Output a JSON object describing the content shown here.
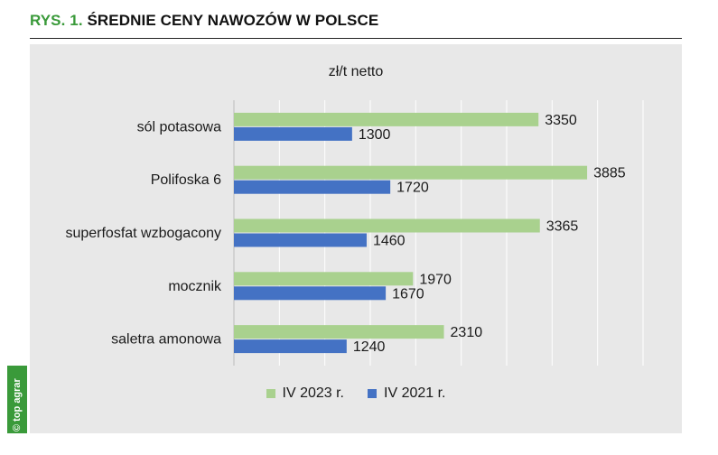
{
  "header": {
    "prefix": "RYS. 1.",
    "title": "ŚREDNIE CENY NAWOZÓW W POLSCE"
  },
  "watermark": "© top agrar",
  "colors": {
    "series_2023": "#a9d18e",
    "series_2021": "#4472c4",
    "title_accent": "#3a9a3a",
    "panel_bg": "#e8e8e8"
  },
  "chart_data": {
    "type": "bar",
    "orientation": "horizontal",
    "unit_label": "zł/t netto",
    "categories": [
      "sól potasowa",
      "Polifoska 6",
      "superfosfat wzbogacony",
      "mocznik",
      "saletra amonowa"
    ],
    "series": [
      {
        "name": "IV 2023 r.",
        "color": "#a9d18e",
        "values": [
          3350,
          3885,
          3365,
          1970,
          2310
        ]
      },
      {
        "name": "IV 2021 r.",
        "color": "#4472c4",
        "values": [
          1300,
          1720,
          1460,
          1670,
          1240
        ]
      }
    ],
    "xlim": [
      0,
      4500
    ],
    "grid": true,
    "legend_position": "bottom"
  }
}
